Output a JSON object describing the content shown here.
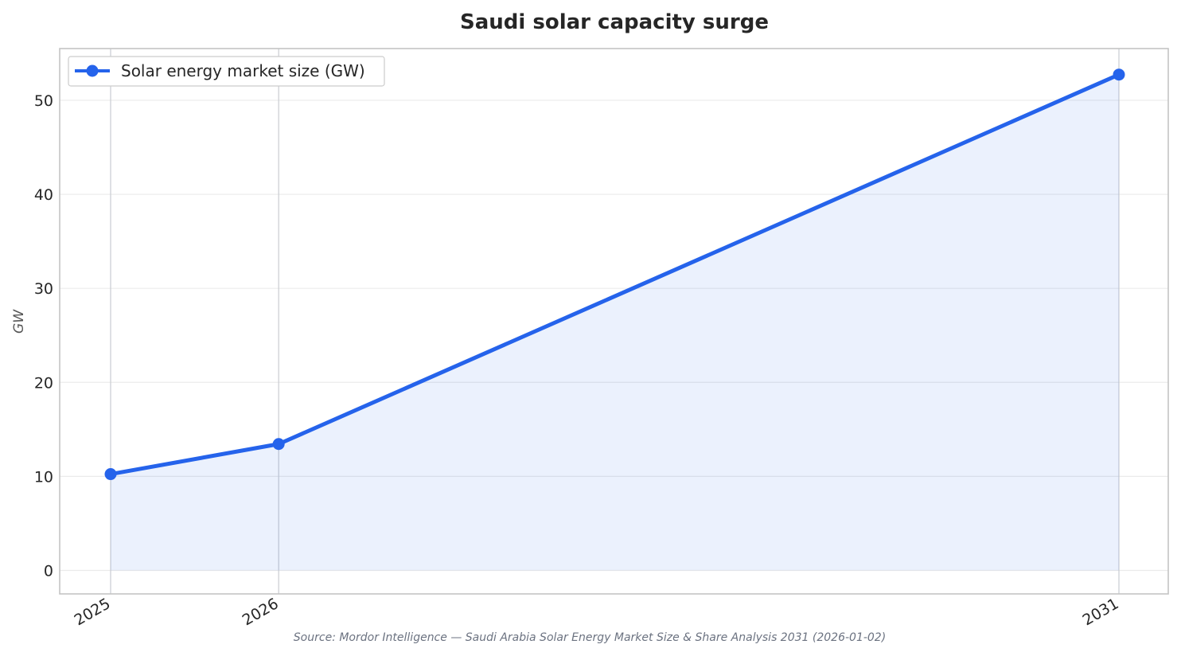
{
  "chart_data": {
    "type": "line",
    "title": "Saudi solar capacity surge",
    "ylabel": "GW",
    "xlabel": "",
    "categories": [
      "2025",
      "2026",
      "2031"
    ],
    "x": [
      2025,
      2026,
      2031
    ],
    "series": [
      {
        "name": "Solar energy market size (GW)",
        "values": [
          10.24,
          13.44,
          52.73
        ],
        "color": "#2563eb"
      }
    ],
    "ylim": [
      -2.5,
      55.5
    ],
    "yticks": [
      "0",
      "10",
      "20",
      "30",
      "40",
      "50"
    ],
    "grid": true,
    "area_fill": true,
    "legend_position": "top-left",
    "source": "Source: Mordor Intelligence — Saudi Arabia Solar Energy Market Size & Share Analysis 2031 (2026-01-02)"
  }
}
